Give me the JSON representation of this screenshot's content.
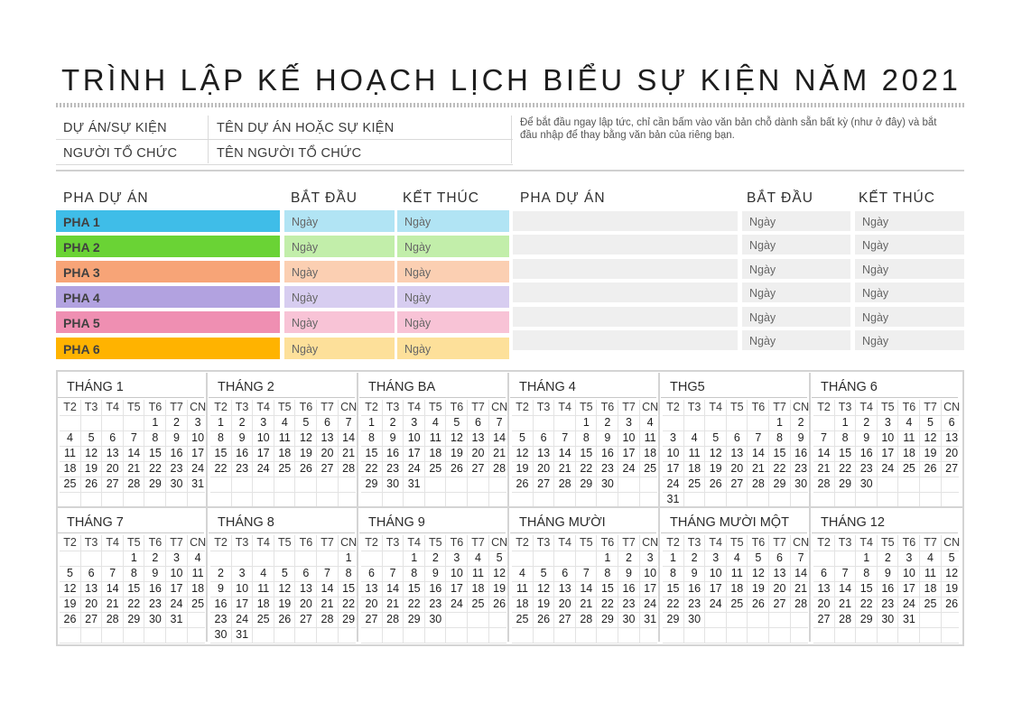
{
  "title": "TRÌNH LẬP KẾ HOẠCH LỊCH BIỂU SỰ KIỆN NĂM 2021",
  "info": {
    "project_label": "DỰ ÁN/SỰ KIỆN",
    "project_value": "TÊN DỰ ÁN HOẶC SỰ KIỆN",
    "organizer_label": "NGƯỜI TỔ CHỨC",
    "organizer_value": "TÊN NGƯỜI TỔ CHỨC",
    "hint": "Để bắt đầu ngay lập tức, chỉ cần bấm vào văn bản chỗ dành sẵn bất kỳ (như ở đây) và bắt đầu nhập để thay bằng văn bản của riêng bạn."
  },
  "phases_left": {
    "header_phase": "PHA DỰ ÁN",
    "header_start": "BẮT ĐẦU",
    "header_end": "KẾT THÚC",
    "rows": [
      {
        "name": "PHA 1",
        "start": "Ngày",
        "end": "Ngày",
        "color": "#3fbde8",
        "light": "#b1e4f4"
      },
      {
        "name": "PHA 2",
        "start": "Ngày",
        "end": "Ngày",
        "color": "#6ad335",
        "light": "#c2eeaa"
      },
      {
        "name": "PHA 3",
        "start": "Ngày",
        "end": "Ngày",
        "color": "#f7a477",
        "light": "#fbcfb2"
      },
      {
        "name": "PHA 4",
        "start": "Ngày",
        "end": "Ngày",
        "color": "#b2a2e0",
        "light": "#d7cdf0"
      },
      {
        "name": "PHA 5",
        "start": "Ngày",
        "end": "Ngày",
        "color": "#ef8fb2",
        "light": "#f8c3d6"
      },
      {
        "name": "PHA 6",
        "start": "Ngày",
        "end": "Ngày",
        "color": "#ffb300",
        "light": "#fde09a"
      }
    ]
  },
  "phases_right": {
    "header_phase": "PHA DỰ ÁN",
    "header_start": "BẮT ĐẦU",
    "header_end": "KẾT THÚC",
    "rows": [
      {
        "start": "Ngày",
        "end": "Ngày"
      },
      {
        "start": "Ngày",
        "end": "Ngày"
      },
      {
        "start": "Ngày",
        "end": "Ngày"
      },
      {
        "start": "Ngày",
        "end": "Ngày"
      },
      {
        "start": "Ngày",
        "end": "Ngày"
      },
      {
        "start": "Ngày",
        "end": "Ngày"
      }
    ]
  },
  "weekdays": [
    "T2",
    "T3",
    "T4",
    "T5",
    "T6",
    "T7",
    "CN"
  ],
  "months": [
    {
      "name": "THÁNG 1",
      "offset": 4,
      "days": 31
    },
    {
      "name": "THÁNG 2",
      "offset": 0,
      "days": 28
    },
    {
      "name": "THÁNG BA",
      "offset": 0,
      "days": 31
    },
    {
      "name": "THÁNG 4",
      "offset": 3,
      "days": 30
    },
    {
      "name": "THG5",
      "offset": 5,
      "days": 31
    },
    {
      "name": "THÁNG 6",
      "offset": 1,
      "days": 30
    },
    {
      "name": "THÁNG 7",
      "offset": 3,
      "days": 31
    },
    {
      "name": "THÁNG 8",
      "offset": 6,
      "days": 31
    },
    {
      "name": "THÁNG 9",
      "offset": 2,
      "days": 30
    },
    {
      "name": "THÁNG MƯỜI",
      "offset": 4,
      "days": 31
    },
    {
      "name": "THÁNG MƯỜI MỘT",
      "offset": 0,
      "days": 30
    },
    {
      "name": "THÁNG 12",
      "offset": 2,
      "days": 31
    }
  ]
}
